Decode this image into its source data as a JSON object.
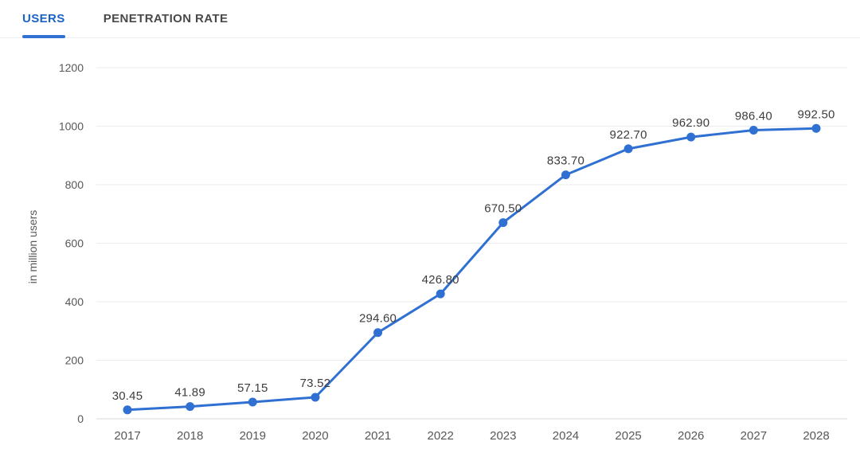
{
  "tabs": [
    {
      "label": "USERS",
      "active": true
    },
    {
      "label": "PENETRATION RATE",
      "active": false
    }
  ],
  "colors": {
    "line": "#2f70d2",
    "active_tab": "#1a63c2",
    "inactive_tab": "#49494b",
    "grid": "#ebebec",
    "axis_line": "#d9d9db",
    "axis_text": "#58585a",
    "value_label": "#3d3d3f"
  },
  "chart_data": {
    "type": "line",
    "categories": [
      "2017",
      "2018",
      "2019",
      "2020",
      "2021",
      "2022",
      "2023",
      "2024",
      "2025",
      "2026",
      "2027",
      "2028"
    ],
    "values": [
      30.45,
      41.89,
      57.15,
      73.52,
      294.6,
      426.8,
      670.5,
      833.7,
      922.7,
      962.9,
      986.4,
      992.5
    ],
    "title": "",
    "xlabel": "",
    "ylabel": "in million users",
    "yticks": [
      0,
      200,
      400,
      600,
      800,
      1000,
      1200
    ],
    "ylim": [
      0,
      1200
    ],
    "grid": true,
    "legend": "none",
    "marker": "circle",
    "data_labels_decimals": 2
  }
}
